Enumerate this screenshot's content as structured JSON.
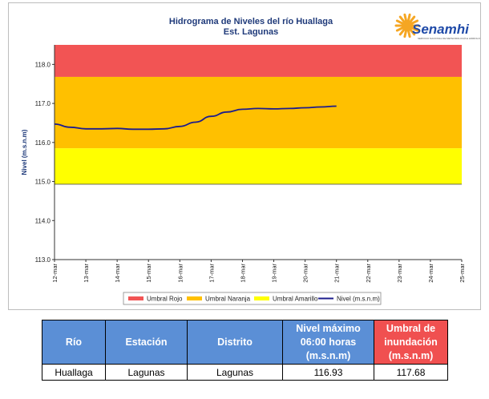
{
  "chart_data": {
    "type": "line",
    "title": "Hidrograma de Niveles del río Huallaga",
    "subtitle": "Est. Lagunas",
    "ylabel": "Nivel (m.s.n.m)",
    "xlabel": "",
    "ylim": [
      113.0,
      118.5
    ],
    "yticks": [
      "113.0",
      "114.0",
      "115.0",
      "116.0",
      "117.0",
      "118.0"
    ],
    "categories": [
      "12-mar",
      "13-mar",
      "14-mar",
      "15-mar",
      "16-mar",
      "17-mar",
      "18-mar",
      "19-mar",
      "20-mar",
      "21-mar",
      "22-mar",
      "23-mar",
      "24-mar",
      "25-mar"
    ],
    "bands": [
      {
        "name": "Umbral Rojo",
        "from": 117.68,
        "to": 118.5,
        "color": "#f25454"
      },
      {
        "name": "Umbral Naranja",
        "from": 115.85,
        "to": 117.68,
        "color": "#ffc000"
      },
      {
        "name": "Umbral Amarillo",
        "from": 114.93,
        "to": 115.85,
        "color": "#ffff00"
      }
    ],
    "series": [
      {
        "name": "Nivel (m.s.n.m)",
        "color": "#1c1c8c",
        "x": [
          0,
          0.5,
          1,
          1.5,
          2,
          2.5,
          3,
          3.5,
          4,
          4.5,
          5,
          5.5,
          6,
          6.5,
          7,
          7.5,
          8,
          8.5,
          9
        ],
        "values": [
          116.47,
          116.39,
          116.35,
          116.35,
          116.36,
          116.34,
          116.34,
          116.35,
          116.41,
          116.52,
          116.67,
          116.78,
          116.85,
          116.87,
          116.86,
          116.87,
          116.89,
          116.91,
          116.93
        ]
      }
    ],
    "legend": [
      "Umbral Rojo",
      "Umbral Naranja",
      "Umbral Amarillo",
      "Nivel (m.s.n.m)"
    ],
    "legend_position": "bottom",
    "grid": false
  },
  "logo": {
    "name": "Senamhi",
    "subtitle": "SERVICIO NACIONAL DE METEOROLOGÍA E HIDROLOGÍA DEL PERÚ",
    "sun_color": "#f5a623",
    "text_color": "#1f4aa8"
  },
  "table": {
    "headers": [
      "Río",
      "Estación",
      "Distrito",
      "Nivel máximo 06:00 horas (m.s.n.m)",
      "Umbral de inundación (m.s.n.m)"
    ],
    "header_colors": [
      "#5b8fd6",
      "#5b8fd6",
      "#5b8fd6",
      "#5b8fd6",
      "#f05050"
    ],
    "row": [
      "Huallaga",
      "Lagunas",
      "Lagunas",
      "116.93",
      "117.68"
    ]
  }
}
